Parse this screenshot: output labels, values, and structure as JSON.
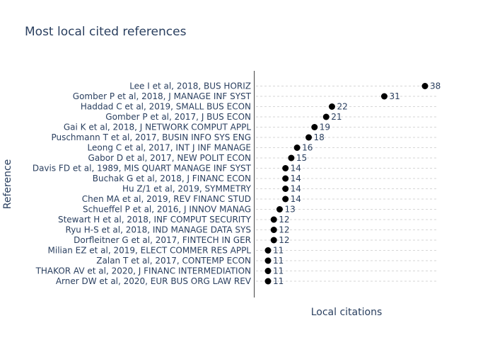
{
  "chart_data": {
    "type": "scatter",
    "title": "Most local cited references",
    "xlabel": "Local citations",
    "ylabel": "Reference",
    "grid": true,
    "marker_color": "#000000",
    "text_color": "#2a3f5f",
    "grid_color": "#d6d6d6",
    "categories": [
      "Lee I et al, 2018, BUS HORIZ",
      "Gomber P et al, 2018, J MANAGE INF SYST",
      "Haddad C et al, 2019, SMALL BUS ECON",
      "Gomber P et al, 2017, J BUS ECON",
      "Gai K et al, 2018, J NETWORK COMPUT APPL",
      "Puschmann T et al, 2017, BUSIN INFO SYS ENG",
      "Leong C et al, 2017, INT J INF MANAGE",
      "Gabor D et al, 2017, NEW POLIT ECON",
      "Davis FD et al, 1989, MIS QUART MANAGE INF SYST",
      "Buchak G et al, 2018, J FINANC ECON",
      "Hu Z/1 et al, 2019, SYMMETRY",
      "Chen MA et al, 2019, REV FINANC STUD",
      "Schueffel P et al, 2016, J INNOV MANAG",
      "Stewart H et al, 2018, INF COMPUT SECURITY",
      "Ryu H-S et al, 2018, IND MANAGE DATA SYS",
      "Dorfleitner G et al, 2017, FINTECH IN GER",
      "Milian EZ et al, 2019, ELECT COMMER RES APPL",
      "Zalan T et al, 2017, CONTEMP ECON",
      "THAKOR AV et al, 2020, J FINANC INTERMEDIATION",
      "Arner DW et al, 2020, EUR BUS ORG LAW REV"
    ],
    "values": [
      38,
      31,
      22,
      21,
      19,
      18,
      16,
      15,
      14,
      14,
      14,
      14,
      13,
      12,
      12,
      12,
      11,
      11,
      11,
      11
    ],
    "data_labels": [
      "38",
      "31",
      "22",
      "21",
      "19",
      "18",
      "16",
      "15",
      "14",
      "14",
      "14",
      "14",
      "13",
      "12",
      "12",
      "12",
      "11",
      "11",
      "11",
      "11"
    ]
  }
}
